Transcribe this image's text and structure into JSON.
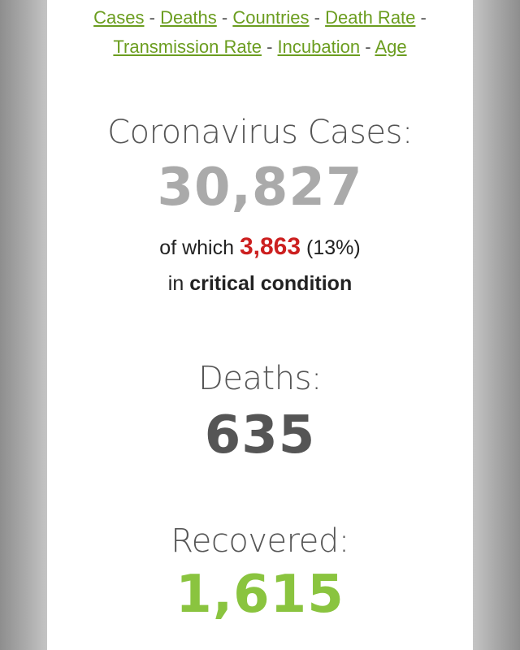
{
  "nav": {
    "links": [
      "Cases",
      "Deaths",
      "Countries",
      "Death Rate",
      "Transmission Rate",
      "Incubation",
      "Age"
    ],
    "separator": "-"
  },
  "cases": {
    "label": "Coronavirus Cases:",
    "count": "30,827",
    "critical_prefix": "of which",
    "critical_count": "3,863",
    "critical_percent": "(13%)",
    "critical_in": "in",
    "critical_text": "critical condition"
  },
  "deaths": {
    "label": "Deaths:",
    "count": "635"
  },
  "recovered": {
    "label": "Recovered:",
    "count": "1,615"
  },
  "colors": {
    "link": "#6b9d1f",
    "critical": "#cc1f1f",
    "recovered": "#8ac43f",
    "cases_number": "#aaaaaa"
  }
}
